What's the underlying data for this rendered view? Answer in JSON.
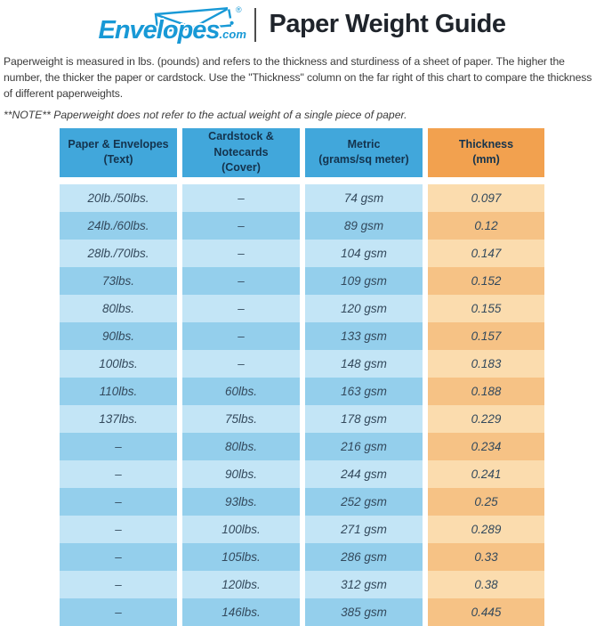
{
  "header": {
    "logo": {
      "brand": "Envelopes",
      "tld": ".com",
      "registered": "®"
    },
    "title": "Paper Weight Guide"
  },
  "intro": {
    "paragraph": "Paperweight is measured in lbs. (pounds) and refers to the thickness and sturdiness of a sheet of paper. The higher the number, the thicker the paper or cardstock. Use the \"Thickness\" column on the far right of this chart to compare the thickness of different paperweights.",
    "note": "**NOTE** Paperweight does not refer to the actual weight of a single piece of paper."
  },
  "table": {
    "headers": [
      {
        "line1": "Paper & Envelopes",
        "line2": "(Text)"
      },
      {
        "line1": "Cardstock & Notecards",
        "line2": "(Cover)"
      },
      {
        "line1": "Metric",
        "line2": "(grams/sq meter)"
      },
      {
        "line1": "Thickness",
        "line2": "(mm)"
      }
    ]
  },
  "chart_data": {
    "type": "table",
    "title": "Paper Weight Guide",
    "columns": [
      "Paper & Envelopes (Text)",
      "Cardstock & Notecards (Cover)",
      "Metric (grams/sq meter)",
      "Thickness (mm)"
    ],
    "rows": [
      [
        "20lb./50lbs.",
        "–",
        "74 gsm",
        "0.097"
      ],
      [
        "24lb./60lbs.",
        "–",
        "89 gsm",
        "0.12"
      ],
      [
        "28lb./70lbs.",
        "–",
        "104 gsm",
        "0.147"
      ],
      [
        "73lbs.",
        "–",
        "109 gsm",
        "0.152"
      ],
      [
        "80lbs.",
        "–",
        "120 gsm",
        "0.155"
      ],
      [
        "90lbs.",
        "–",
        "133 gsm",
        "0.157"
      ],
      [
        "100lbs.",
        "–",
        "148 gsm",
        "0.183"
      ],
      [
        "110lbs.",
        "60lbs.",
        "163 gsm",
        "0.188"
      ],
      [
        "137lbs.",
        "75lbs.",
        "178 gsm",
        "0.229"
      ],
      [
        "–",
        "80lbs.",
        "216 gsm",
        "0.234"
      ],
      [
        "–",
        "90lbs.",
        "244 gsm",
        "0.241"
      ],
      [
        "–",
        "93lbs.",
        "252 gsm",
        "0.25"
      ],
      [
        "–",
        "100lbs.",
        "271 gsm",
        "0.289"
      ],
      [
        "–",
        "105lbs.",
        "286 gsm",
        "0.33"
      ],
      [
        "–",
        "120lbs.",
        "312 gsm",
        "0.38"
      ],
      [
        "–",
        "146lbs.",
        "385 gsm",
        "0.445"
      ]
    ]
  },
  "colors": {
    "logo_blue": "#1899d6",
    "header_blue": "#41a7db",
    "header_orange": "#f2a14f",
    "row_blue_light": "#c3e5f6",
    "row_blue_dark": "#94cfec",
    "row_orange_light": "#fbdcae",
    "row_orange_dark": "#f6c285",
    "header_text": "#14334d",
    "cell_text": "#33495c"
  }
}
